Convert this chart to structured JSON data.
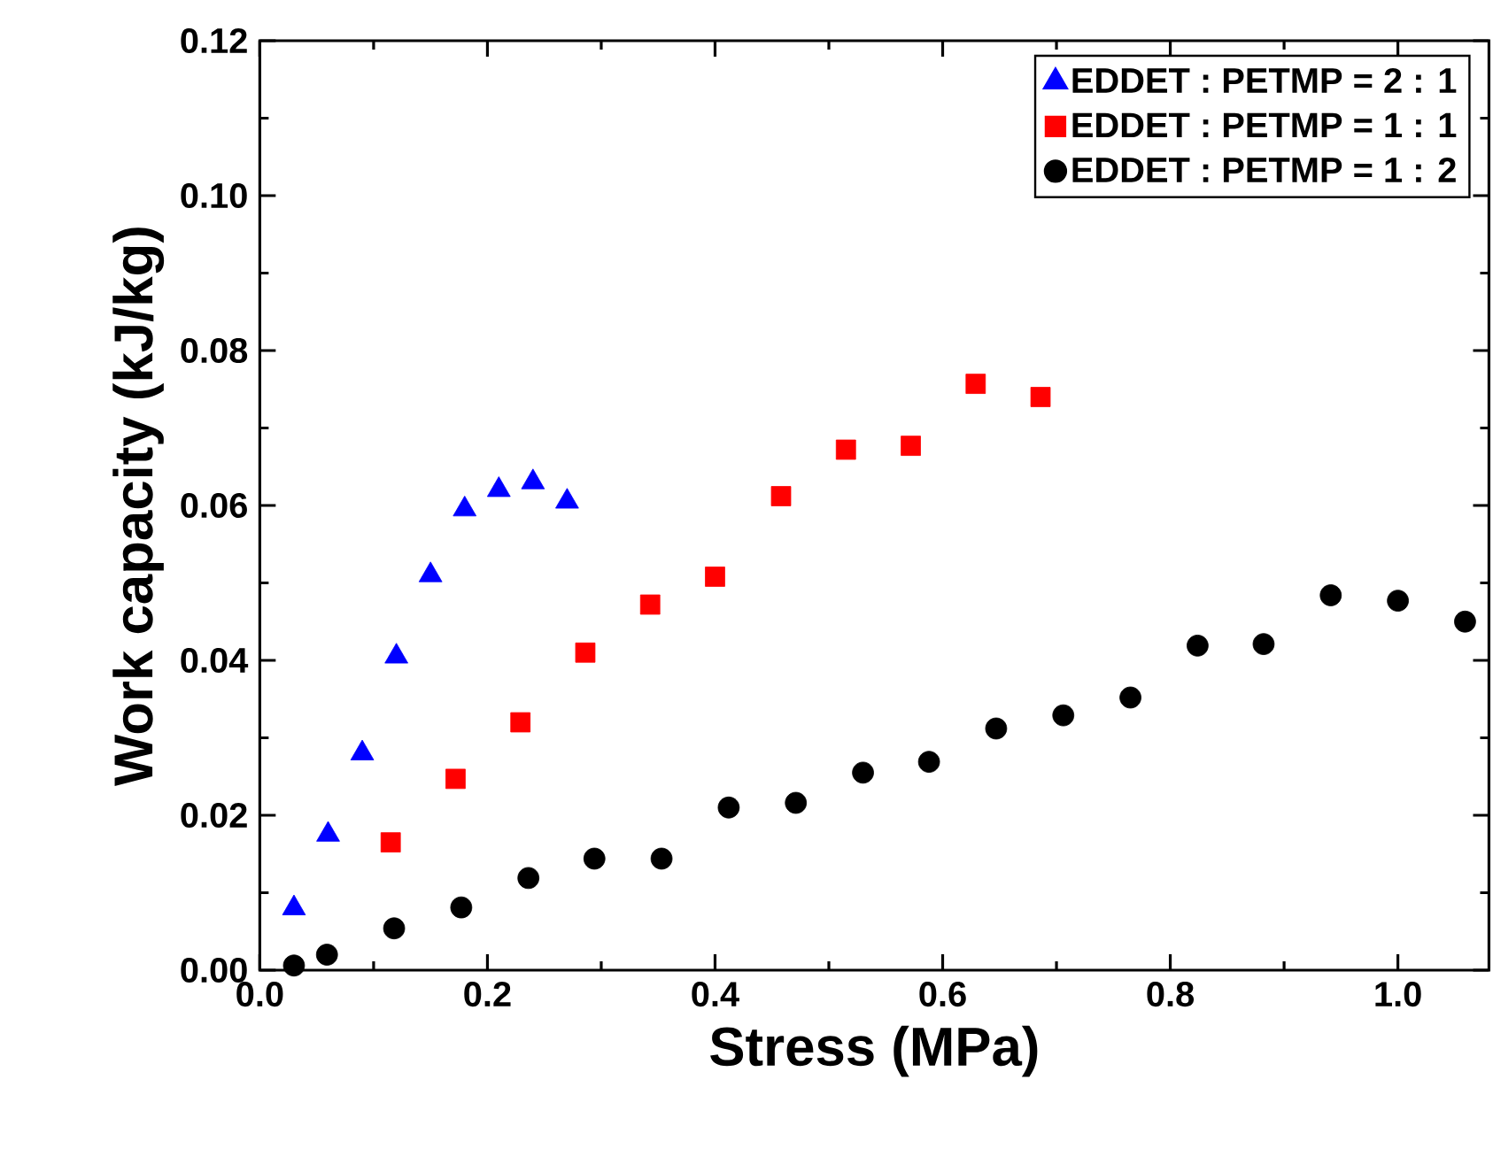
{
  "chart_data": {
    "type": "scatter",
    "xlabel": "Stress (MPa)",
    "ylabel": "Work capacity (kJ/kg)",
    "xlim": [
      0,
      1.08
    ],
    "ylim": [
      0,
      0.12
    ],
    "xticks": [
      {
        "value": 0,
        "label": "0.0"
      },
      {
        "value": 0.1,
        "label": null
      },
      {
        "value": 0.2,
        "label": "0.2"
      },
      {
        "value": 0.3,
        "label": null
      },
      {
        "value": 0.4,
        "label": "0.4"
      },
      {
        "value": 0.5,
        "label": null
      },
      {
        "value": 0.6,
        "label": "0.6"
      },
      {
        "value": 0.7,
        "label": null
      },
      {
        "value": 0.8,
        "label": "0.8"
      },
      {
        "value": 0.9,
        "label": null
      },
      {
        "value": 1.0,
        "label": "1.0"
      }
    ],
    "yticks": [
      {
        "value": 0,
        "label": "0.00"
      },
      {
        "value": 0.01,
        "label": null
      },
      {
        "value": 0.02,
        "label": "0.02"
      },
      {
        "value": 0.03,
        "label": null
      },
      {
        "value": 0.04,
        "label": "0.04"
      },
      {
        "value": 0.05,
        "label": null
      },
      {
        "value": 0.06,
        "label": "0.06"
      },
      {
        "value": 0.07,
        "label": null
      },
      {
        "value": 0.08,
        "label": "0.08"
      },
      {
        "value": 0.09,
        "label": null
      },
      {
        "value": 0.1,
        "label": "0.10"
      },
      {
        "value": 0.11,
        "label": null
      },
      {
        "value": 0.12,
        "label": "0.12"
      }
    ],
    "legend": "top right",
    "series": [
      {
        "name": "EDDET : PETMP = 2 : 1",
        "color": "#0000ff",
        "marker": "triangle",
        "x": [
          0.03,
          0.06,
          0.09,
          0.12,
          0.15,
          0.18,
          0.21,
          0.24,
          0.27
        ],
        "values": [
          0.008,
          0.0175,
          0.028,
          0.0405,
          0.051,
          0.0595,
          0.062,
          0.063,
          0.0605
        ]
      },
      {
        "name": "EDDET : PETMP = 1 : 1",
        "color": "#ff0000",
        "marker": "square",
        "x": [
          0.115,
          0.172,
          0.229,
          0.286,
          0.343,
          0.4,
          0.458,
          0.515,
          0.572,
          0.629,
          0.686
        ],
        "values": [
          0.0165,
          0.0247,
          0.032,
          0.041,
          0.0472,
          0.0508,
          0.0612,
          0.0672,
          0.0677,
          0.0757,
          0.074
        ]
      },
      {
        "name": "EDDET : PETMP = 1 : 2",
        "color": "#000000",
        "marker": "circle",
        "x": [
          0.03,
          0.059,
          0.118,
          0.177,
          0.236,
          0.294,
          0.353,
          0.412,
          0.471,
          0.53,
          0.588,
          0.647,
          0.706,
          0.765,
          0.824,
          0.882,
          0.941,
          1.0,
          1.059
        ],
        "values": [
          0.0006,
          0.002,
          0.0054,
          0.0081,
          0.0119,
          0.0144,
          0.0144,
          0.021,
          0.0216,
          0.0255,
          0.0269,
          0.0312,
          0.0329,
          0.0352,
          0.0419,
          0.0421,
          0.0484,
          0.0477,
          0.045
        ]
      }
    ]
  }
}
